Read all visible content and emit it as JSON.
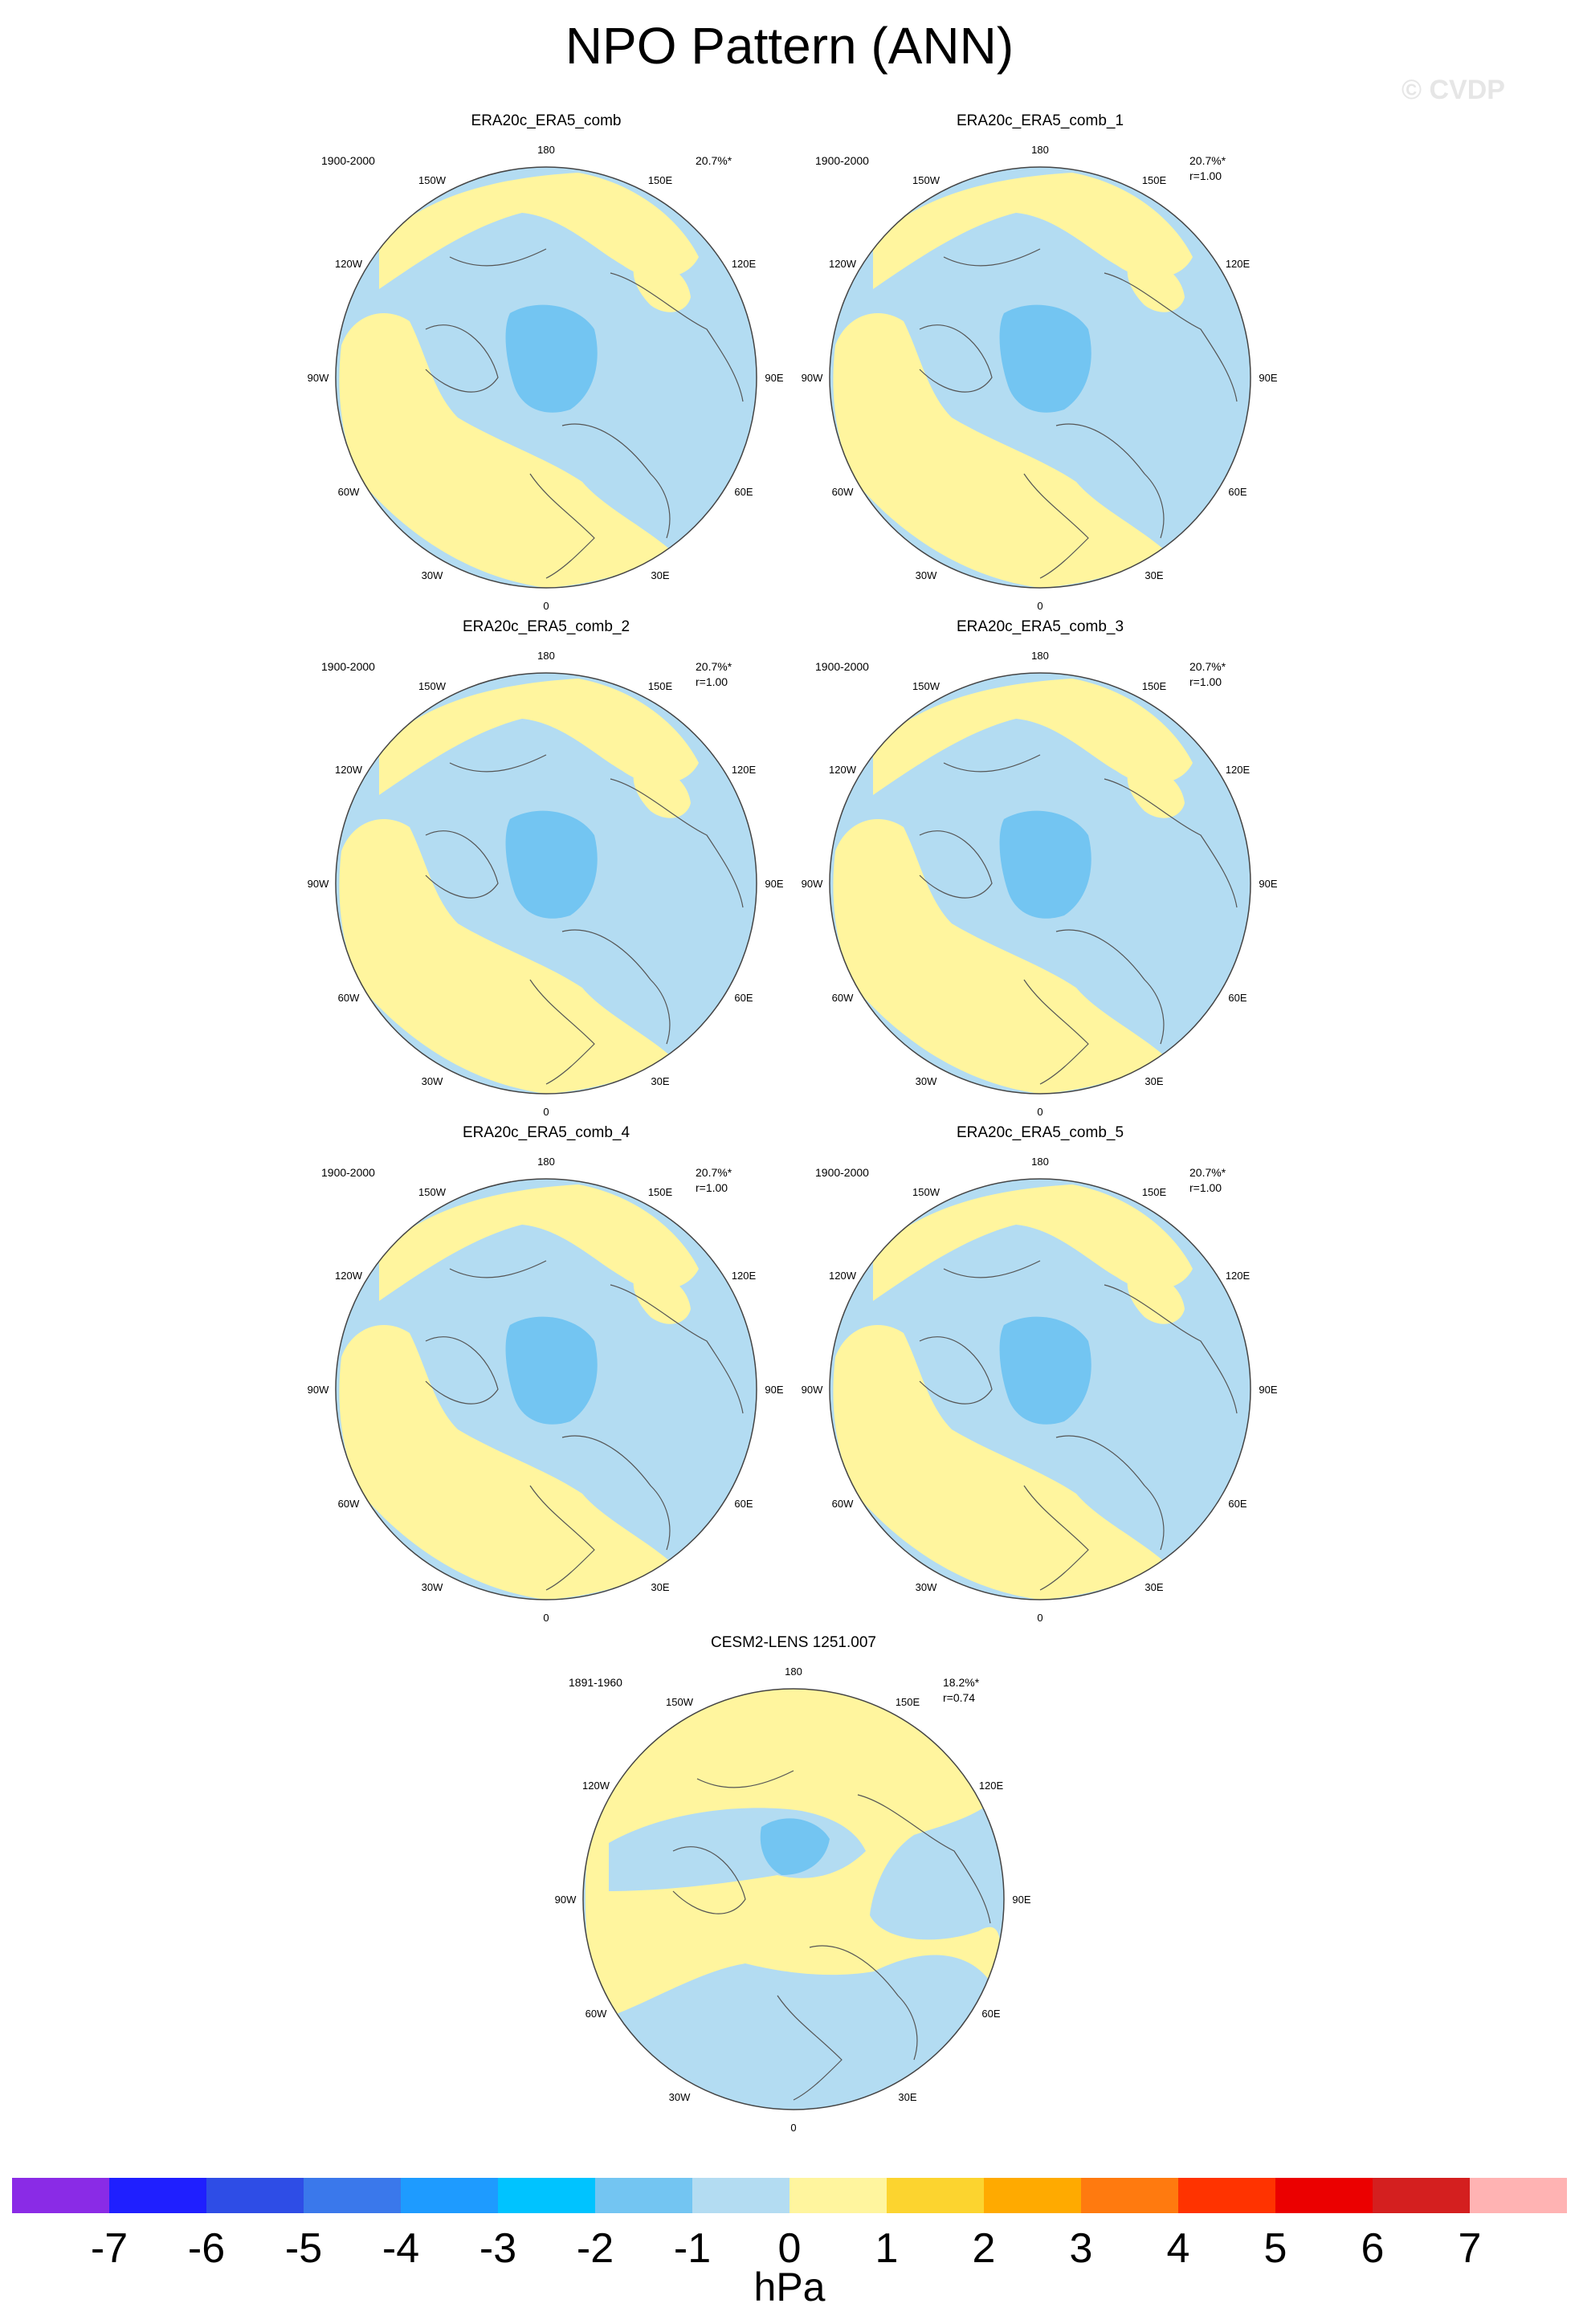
{
  "title": "NPO Pattern (ANN)",
  "watermark": "© CVDP",
  "colors": {
    "negative_1": "#b3dcf2",
    "negative_2": "#73c5f2",
    "positive_1": "#fff59e",
    "coastline": "#555555"
  },
  "lon_labels": [
    "180",
    "150E",
    "120E",
    "90E",
    "60E",
    "30E",
    "0",
    "30W",
    "60W",
    "90W",
    "120W",
    "150W"
  ],
  "panels": [
    {
      "name": "ERA20c_ERA5_comb",
      "period": "1900-2000",
      "pct": "20.7%*",
      "corr": ""
    },
    {
      "name": "ERA20c_ERA5_comb_1",
      "period": "1900-2000",
      "pct": "20.7%*",
      "corr": "r=1.00"
    },
    {
      "name": "ERA20c_ERA5_comb_2",
      "period": "1900-2000",
      "pct": "20.7%*",
      "corr": "r=1.00"
    },
    {
      "name": "ERA20c_ERA5_comb_3",
      "period": "1900-2000",
      "pct": "20.7%*",
      "corr": "r=1.00"
    },
    {
      "name": "ERA20c_ERA5_comb_4",
      "period": "1900-2000",
      "pct": "20.7%*",
      "corr": "r=1.00"
    },
    {
      "name": "ERA20c_ERA5_comb_5",
      "period": "1900-2000",
      "pct": "20.7%*",
      "corr": "r=1.00"
    },
    {
      "name": "CESM2-LENS 1251.007",
      "period": "1891-1960",
      "pct": "18.2%*",
      "corr": "r=0.74"
    }
  ],
  "colorbar": {
    "units": "hPa",
    "tick_labels": [
      "-7",
      "-6",
      "-5",
      "-4",
      "-3",
      "-2",
      "-1",
      "0",
      "1",
      "2",
      "3",
      "4",
      "5",
      "6",
      "7"
    ],
    "colors": [
      "#8a2be6",
      "#1f1fff",
      "#2e4de6",
      "#3a78eb",
      "#1e9bff",
      "#00c3ff",
      "#73c5f2",
      "#b3dcf2",
      "#fff59e",
      "#fcd42f",
      "#ffaa00",
      "#ff7a0f",
      "#ff3300",
      "#eb0000",
      "#d41f1f",
      "#ffb3b3"
    ]
  }
}
